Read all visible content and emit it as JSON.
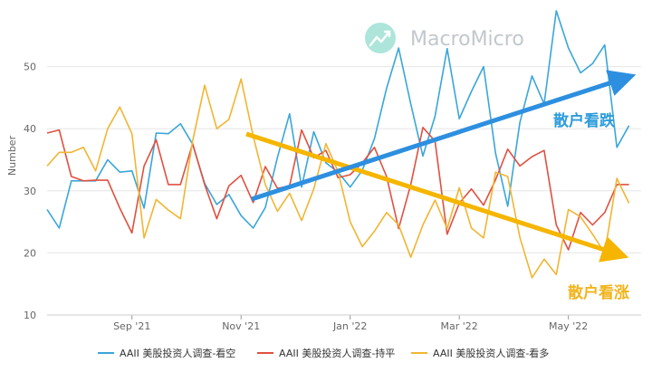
{
  "chart_data": {
    "type": "line",
    "ylabel": "Number",
    "ylim": [
      10,
      60
    ],
    "yticks": [
      10,
      20,
      30,
      40,
      50
    ],
    "x_index_range": [
      0,
      49
    ],
    "x_ticks": [
      {
        "label": "Sep '21",
        "i": 7
      },
      {
        "label": "Nov '21",
        "i": 16
      },
      {
        "label": "Jan '22",
        "i": 25
      },
      {
        "label": "Mar '22",
        "i": 34
      },
      {
        "label": "May '22",
        "i": 43
      }
    ],
    "grid": true,
    "legend_position": "bottom",
    "series": [
      {
        "name": "AAII 美股投资人调查-看空",
        "color": "#3aa6d9",
        "values": [
          27,
          24,
          31.6,
          31.6,
          31.6,
          35,
          33,
          33.2,
          27.2,
          39.3,
          39.2,
          40.8,
          37.5,
          31.2,
          27.8,
          29.4,
          26,
          24,
          27.3,
          35.4,
          42.4,
          30.6,
          39.5,
          34.5,
          33,
          30.6,
          33.3,
          38.4,
          46.5,
          53,
          44,
          35.6,
          42,
          52.9,
          41.6,
          46,
          50,
          36,
          27.5,
          41,
          48.5,
          44,
          59,
          53,
          49,
          50.5,
          53.5,
          37,
          40.5
        ]
      },
      {
        "name": "AAII 美股投资人调查-持平",
        "color": "#e05040",
        "values": [
          39.3,
          39.8,
          32.3,
          31.6,
          31.7,
          31.7,
          27.2,
          23.2,
          34,
          38.2,
          31,
          31,
          37.6,
          31,
          25.5,
          30.8,
          32.5,
          28.1,
          33.9,
          30.4,
          30.8,
          39.8,
          35.3,
          36.5,
          32.1,
          32.6,
          34.5,
          37,
          32.3,
          23.9,
          31,
          40.2,
          38,
          23,
          28,
          30.3,
          27.7,
          31.8,
          36.7,
          34,
          35.5,
          36.5,
          24.5,
          20.5,
          26.5,
          24.5,
          26.5,
          31,
          31
        ]
      },
      {
        "name": "AAII 美股投资人调查-看多",
        "color": "#f2b533",
        "values": [
          34,
          36.2,
          36.2,
          37,
          33.2,
          40,
          43.5,
          39.2,
          22.4,
          28.6,
          26.9,
          25.5,
          38,
          47,
          40,
          41.5,
          48,
          38.8,
          31,
          26.7,
          29.6,
          25.2,
          30.3,
          37.6,
          33.1,
          25,
          21,
          23.5,
          26.5,
          24.5,
          19.3,
          24.5,
          28.5,
          23.9,
          30.5,
          24,
          22.4,
          33,
          32.3,
          22.5,
          16,
          19,
          16.5,
          27,
          25.8,
          23,
          20,
          32,
          28
        ]
      }
    ],
    "annotations": [
      {
        "text": "散户看跌",
        "color": "#2d9cdb"
      },
      {
        "text": "散户看涨",
        "color": "#f2b31b"
      }
    ]
  },
  "logo": {
    "text": "MacroMicro"
  }
}
